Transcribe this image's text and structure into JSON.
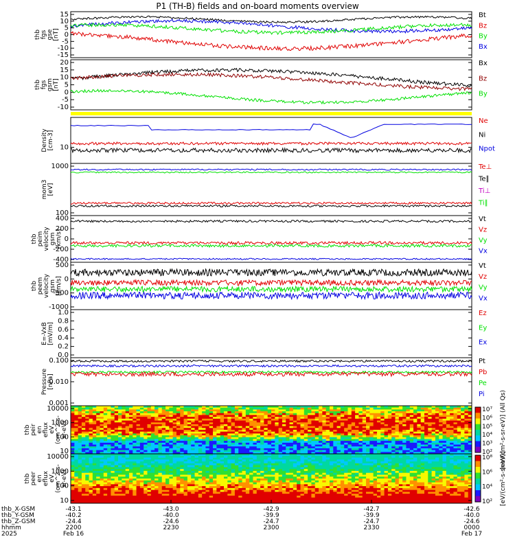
{
  "title": "P1 (TH-B) fields and on-board moments overview",
  "colors": {
    "black": "#000000",
    "red": "#e00000",
    "green": "#00e000",
    "blue": "#0000e0",
    "darkred": "#900000",
    "yellow": "#ffff00",
    "magenta": "#c000c0"
  },
  "chart_data": [
    {
      "type": "line",
      "ylabel": [
        "thb",
        "fgs",
        "gse",
        "[nT]"
      ],
      "yticks": [
        "15",
        "10",
        "5",
        "0",
        "-5",
        "-10",
        "-15"
      ],
      "ylim": [
        -17,
        18
      ],
      "legend": [
        {
          "name": "Bt",
          "color": "black"
        },
        {
          "name": "Bz",
          "color": "red"
        },
        {
          "name": "By",
          "color": "green"
        },
        {
          "name": "Bx",
          "color": "blue"
        }
      ]
    },
    {
      "type": "line",
      "ylabel": [
        "thb",
        "fgs",
        "gsm",
        "[nT]"
      ],
      "yticks": [
        "20",
        "15",
        "10",
        "5",
        "0",
        "-5",
        "-10"
      ],
      "ylim": [
        -12,
        22
      ],
      "legend": [
        {
          "name": "Bx",
          "color": "black"
        },
        {
          "name": "Bz",
          "color": "darkred"
        },
        {
          "name": "By",
          "color": "green"
        }
      ]
    },
    {
      "type": "line",
      "ylabel": [
        "Density",
        "[cm-3]"
      ],
      "yticks": [
        "10"
      ],
      "scale": "log",
      "legend": [
        {
          "name": "Ne",
          "color": "red"
        },
        {
          "name": "Ni",
          "color": "black"
        },
        {
          "name": "Npot",
          "color": "blue"
        }
      ]
    },
    {
      "type": "line",
      "ylabel": [
        "mom3",
        "[eV]"
      ],
      "yticks": [
        "1000",
        "100"
      ],
      "scale": "log",
      "legend": [
        {
          "name": "Te⊥",
          "color": "red"
        },
        {
          "name": "Te∥",
          "color": "black"
        },
        {
          "name": "Ti⊥",
          "color": "magenta"
        },
        {
          "name": "Ti∥",
          "color": "green"
        }
      ]
    },
    {
      "type": "line",
      "ylabel": [
        "thb",
        "peim",
        "velocity",
        "gsm",
        "[km/s]"
      ],
      "yticks": [
        "400",
        "200",
        "0",
        "-200",
        "-400"
      ],
      "ylim": [
        -470,
        520
      ],
      "legend": [
        {
          "name": "Vt",
          "color": "black"
        },
        {
          "name": "Vz",
          "color": "red"
        },
        {
          "name": "Vy",
          "color": "green"
        },
        {
          "name": "Vx",
          "color": "blue"
        }
      ]
    },
    {
      "type": "line",
      "ylabel": [
        "thb",
        "peem",
        "velocity",
        "gsm",
        "[km/s]"
      ],
      "yticks": [
        "500",
        "0",
        "-500",
        "-1000"
      ],
      "ylim": [
        -1050,
        800
      ],
      "legend": [
        {
          "name": "Vt",
          "color": "black"
        },
        {
          "name": "Vz",
          "color": "red"
        },
        {
          "name": "Vy",
          "color": "green"
        },
        {
          "name": "Vx",
          "color": "blue"
        }
      ]
    },
    {
      "type": "line",
      "ylabel": [
        "E=-VxB",
        "[mV/m]"
      ],
      "yticks": [
        "1.0",
        "0.8",
        "0.6",
        "0.4",
        "0.2",
        "0.0"
      ],
      "ylim": [
        -0.03,
        1.05
      ],
      "legend": [
        {
          "name": "Ez",
          "color": "red"
        },
        {
          "name": "Ey",
          "color": "green"
        },
        {
          "name": "Ex",
          "color": "blue"
        }
      ]
    },
    {
      "type": "line",
      "ylabel": [
        "Pressure",
        "[nPa]"
      ],
      "yticks": [
        "0.100",
        "0.010",
        "0.001"
      ],
      "scale": "log",
      "legend": [
        {
          "name": "Pt",
          "color": "black"
        },
        {
          "name": "Pb",
          "color": "red"
        },
        {
          "name": "Pe",
          "color": "green"
        },
        {
          "name": "Pi",
          "color": "blue"
        }
      ]
    },
    {
      "type": "heatmap",
      "ylabel": [
        "thb",
        "peir",
        "en",
        "eflux",
        "eV",
        "(cm^2-s-",
        "sr-eV)"
      ],
      "yticks": [
        "10000",
        "1000",
        "100",
        "10"
      ],
      "colorbar": [
        "10⁷",
        "10⁶",
        "10⁵",
        "10⁴",
        "10³",
        "10²"
      ],
      "colorbar_label": "[eV/(cm²-s-sr-eV)] (All Qs)"
    },
    {
      "type": "heatmap",
      "ylabel": [
        "thb",
        "peer",
        "en",
        "eflux",
        "eV",
        "(cm^2-s-",
        "sr-eV)"
      ],
      "yticks": [
        "10000",
        "1000",
        "100",
        "10"
      ],
      "colorbar": [
        "10⁸",
        "10⁶",
        "10⁴",
        "10²"
      ],
      "colorbar_label": "[eV/(cm²-s-sr-eV)]"
    }
  ],
  "xaxis": {
    "row_labels": [
      "thb_X-GSM",
      "thb_Y-GSM",
      "thb_Z-GSM",
      "hhmm",
      "2025"
    ],
    "columns": [
      [
        "-43.1",
        "-40.2",
        "-24.4",
        "2200",
        "Feb 16"
      ],
      [
        "-43.0",
        "-40.0",
        "-24.6",
        "2230",
        ""
      ],
      [
        "-42.9",
        "-39.9",
        "-24.7",
        "2300",
        ""
      ],
      [
        "-42.7",
        "-39.9",
        "-24.7",
        "2330",
        ""
      ],
      [
        "-42.6",
        "-40.0",
        "-24.6",
        "0000",
        "Feb 17"
      ]
    ]
  }
}
